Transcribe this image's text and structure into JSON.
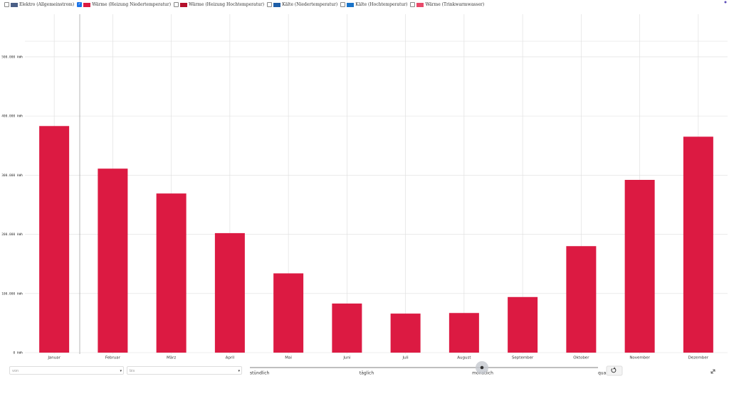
{
  "chart_data": {
    "type": "bar",
    "categories": [
      "Januar",
      "Februar",
      "März",
      "April",
      "Mai",
      "Juni",
      "Juli",
      "August",
      "September",
      "Oktober",
      "November",
      "Dezember"
    ],
    "series": [
      {
        "name": "Elektro (Allgemeinstrom)",
        "color": "#4a5f86",
        "checked": false
      },
      {
        "name": "Wärme (Heizung Niedertemperatur)",
        "color": "#dc1a42",
        "checked": true,
        "values": [
          383000,
          311000,
          269000,
          202000,
          134000,
          83000,
          66000,
          67000,
          94000,
          180000,
          292000,
          365000
        ]
      },
      {
        "name": "Wärme (Heizung Hochtemperatur)",
        "color": "#b5102c",
        "checked": false
      },
      {
        "name": "Kälte (Niedertemperatur)",
        "color": "#1f5fa8",
        "checked": false
      },
      {
        "name": "Kälte (Hochtemperatur)",
        "color": "#1a73c8",
        "checked": false
      },
      {
        "name": "Wärme (Trinkwarmwasser)",
        "color": "#e84a6a",
        "checked": false
      }
    ],
    "ylim": [
      0,
      572000
    ],
    "yticks": [
      {
        "value": 0,
        "label": "0 kWh"
      },
      {
        "value": 100000,
        "label": "100.000 kWh"
      },
      {
        "value": 200000,
        "label": "200.000 kWh"
      },
      {
        "value": 300000,
        "label": "300.000 kWh"
      },
      {
        "value": 400000,
        "label": "400.000 kWh"
      },
      {
        "value": 500000,
        "label": "500.000 kWh"
      }
    ],
    "grid": true
  },
  "controls": {
    "from_placeholder": "von",
    "to_placeholder": "bis",
    "resolutions": [
      "stündlich",
      "täglich",
      "monatlich",
      "quar"
    ],
    "selected_resolution": 2
  }
}
